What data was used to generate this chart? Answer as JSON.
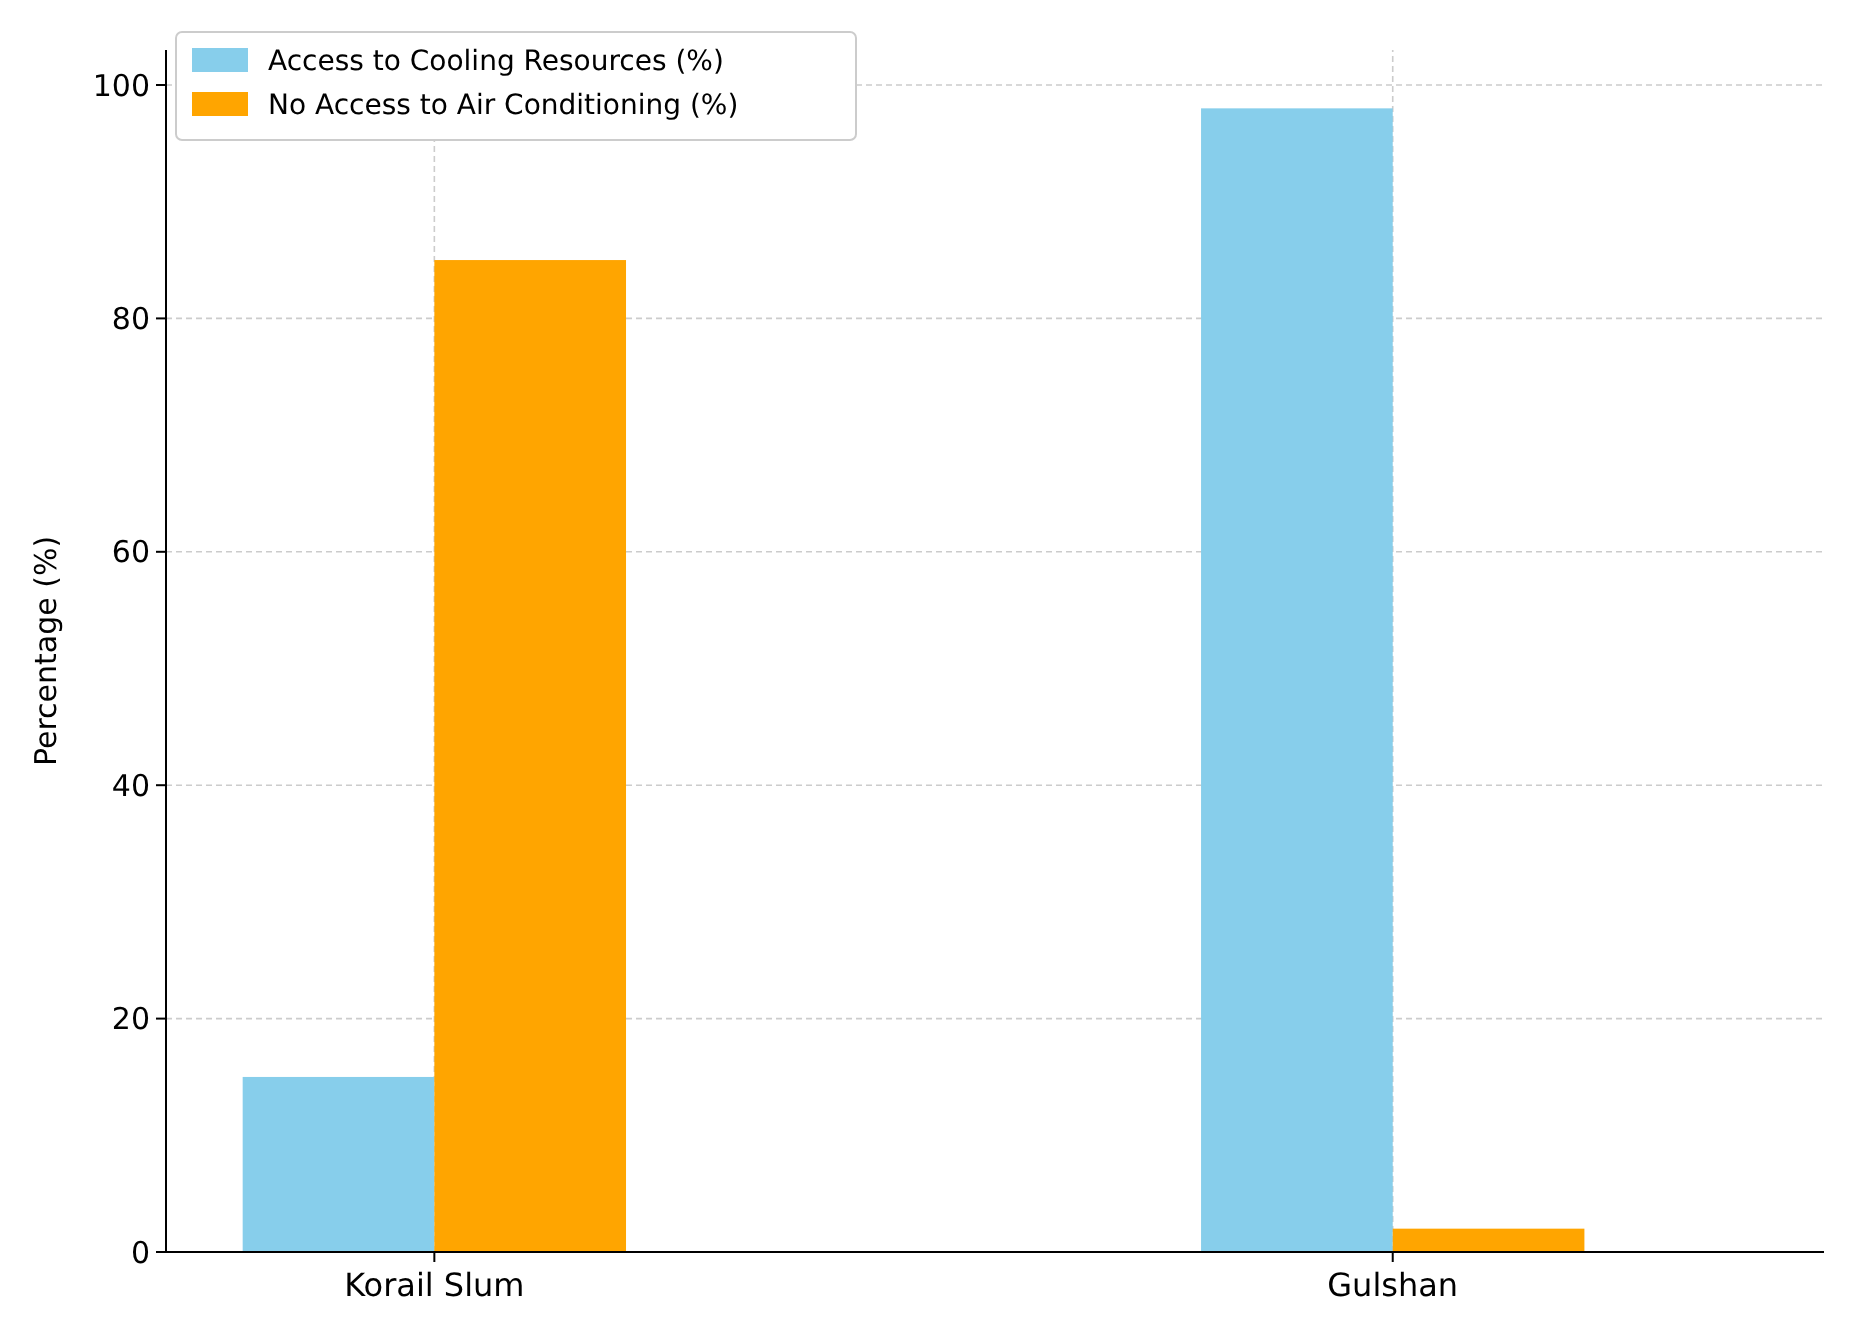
{
  "chart_data": {
    "type": "bar",
    "ylabel": "Percentage (%)",
    "categories": [
      "Korail Slum",
      "Gulshan"
    ],
    "series": [
      {
        "name": "Access to Cooling Resources (%)",
        "color": "#87ceeb",
        "values": [
          15,
          98
        ]
      },
      {
        "name": "No Access to Air Conditioning (%)",
        "color": "#ffa500",
        "values": [
          85,
          2
        ]
      }
    ],
    "ylim": [
      0,
      103
    ],
    "yticks": [
      0,
      20,
      40,
      60,
      80,
      100
    ],
    "grid": true,
    "legend": "top left"
  }
}
